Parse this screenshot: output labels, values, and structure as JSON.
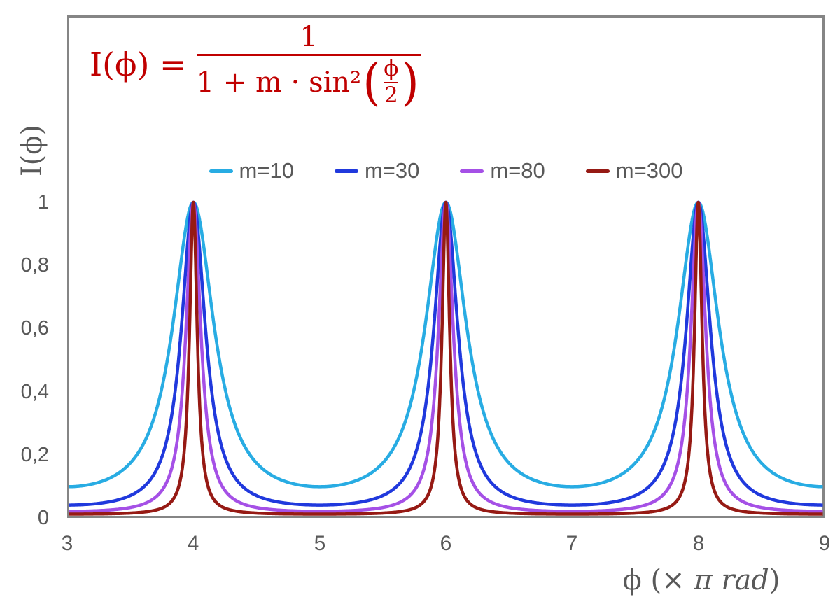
{
  "figure": {
    "background": "#FFFFFF",
    "frame_color": "#858585",
    "text_color": "#595959"
  },
  "formula": {
    "lhs": "I(ϕ) =",
    "numerator": "1",
    "denominator_prefix": "1 + m · sin²",
    "open_paren": "(",
    "inner_numerator": "ϕ",
    "inner_denominator": "2",
    "close_paren": ")",
    "color": "#C00000"
  },
  "y_axis": {
    "title": "I(ϕ)",
    "ticks": [
      "1",
      "0,8",
      "0,6",
      "0,4",
      "0,2",
      "0"
    ]
  },
  "x_axis": {
    "title_prefix": "ϕ  (× ",
    "title_italic": "π rad",
    "title_suffix": ")",
    "ticks": [
      "3",
      "4",
      "5",
      "6",
      "7",
      "8",
      "9"
    ]
  },
  "chart_data": {
    "type": "line",
    "formula": "I(ϕ) = 1 / (1 + m · sin²(ϕ/2)), with ϕ expressed in units of π rad",
    "xlabel": "ϕ (× π rad)",
    "ylabel": "I(ϕ)",
    "xlim": [
      3,
      9
    ],
    "ylim": [
      0,
      1.6
    ],
    "x_ticks": [
      3,
      4,
      5,
      6,
      7,
      8,
      9
    ],
    "y_ticks": [
      0,
      0.2,
      0.4,
      0.6,
      0.8,
      1
    ],
    "grid": false,
    "legend_position": "top-center",
    "series": [
      {
        "name": "m=10",
        "m": 10,
        "color": "#28ACE3"
      },
      {
        "name": "m=30",
        "m": 30,
        "color": "#2039DD"
      },
      {
        "name": "m=80",
        "m": 80,
        "color": "#A550E6"
      },
      {
        "name": "m=300",
        "m": 300,
        "color": "#961A14"
      }
    ],
    "key_points": {
      "peaks": {
        "x": [
          4,
          6,
          8
        ],
        "I": 1
      },
      "minima_at_odd_x": {
        "m=10": 0.091,
        "m=30": 0.032,
        "m=80": 0.012,
        "m=300": 0.003
      }
    }
  }
}
